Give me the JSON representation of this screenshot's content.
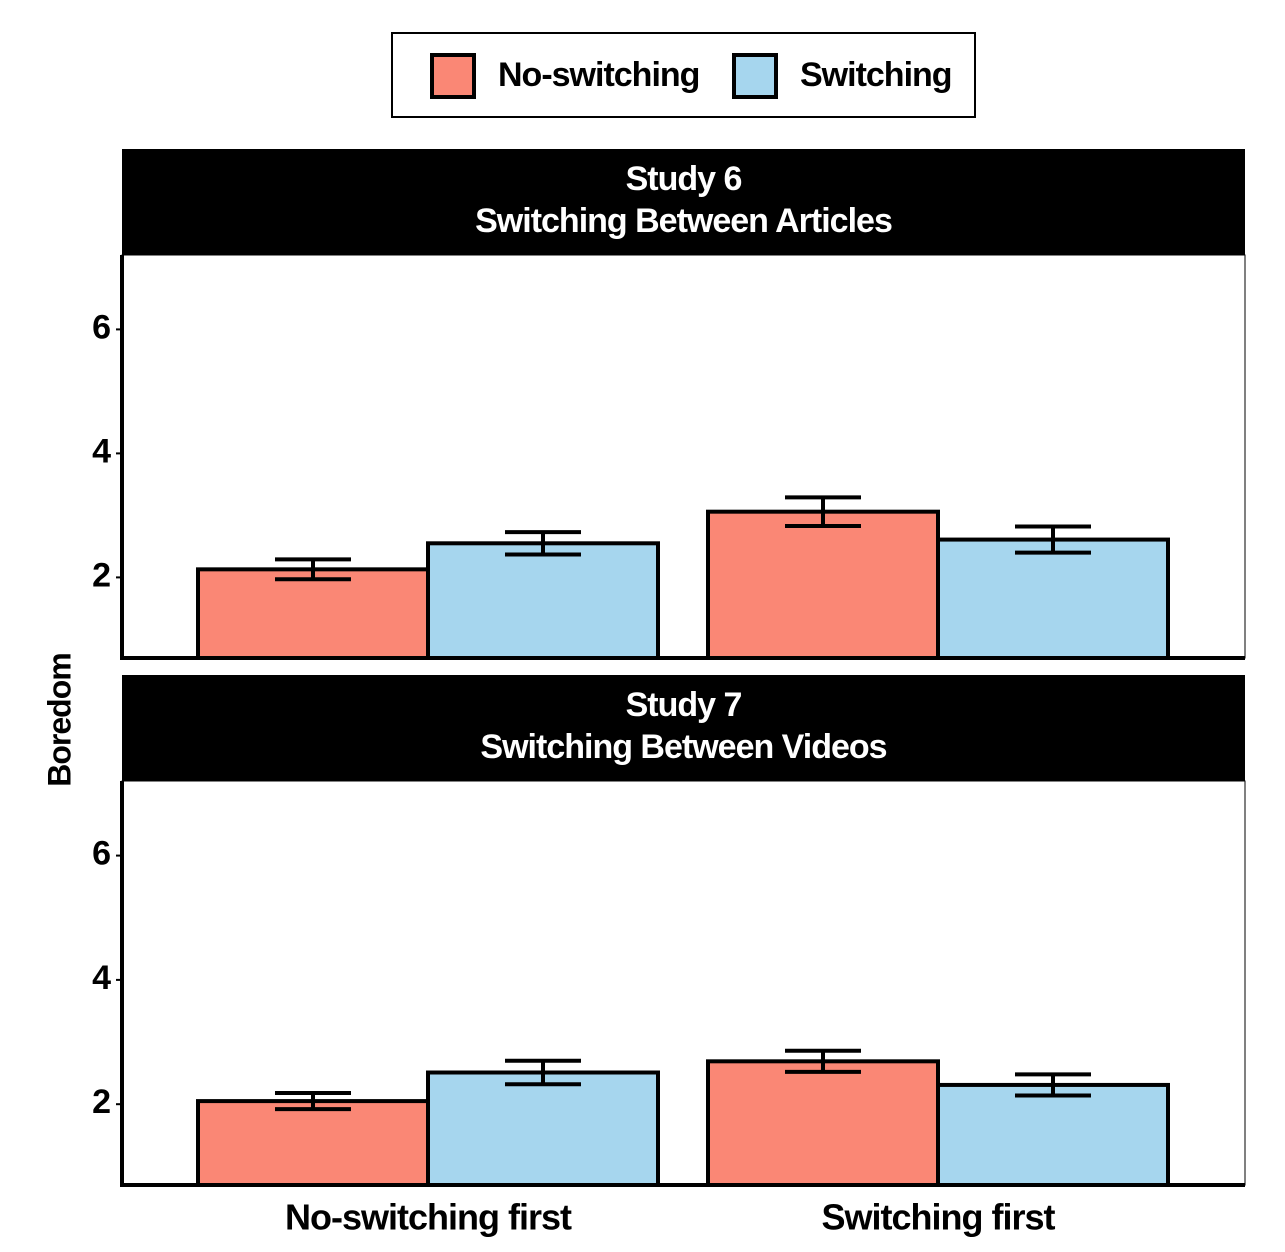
{
  "chart_data": [
    {
      "type": "bar",
      "title": "Study 6",
      "subtitle": "Switching Between Articles",
      "ylabel": "Boredom",
      "categories": [
        "No-switching first",
        "Switching first"
      ],
      "series": [
        {
          "name": "No-switching",
          "color": "#fa8775",
          "values": [
            2.13,
            3.06
          ],
          "errors": [
            0.16,
            0.23
          ]
        },
        {
          "name": "Switching",
          "color": "#a6d6ee",
          "values": [
            2.55,
            2.61
          ],
          "errors": [
            0.18,
            0.21
          ]
        }
      ],
      "ylim": [
        0.7,
        7.2
      ],
      "yticks": [
        2,
        4,
        6
      ]
    },
    {
      "type": "bar",
      "title": "Study 7",
      "subtitle": "Switching Between Videos",
      "categories": [
        "No-switching first",
        "Switching first"
      ],
      "series": [
        {
          "name": "No-switching",
          "color": "#fa8775",
          "values": [
            2.05,
            2.69
          ],
          "errors": [
            0.13,
            0.17
          ]
        },
        {
          "name": "Switching",
          "color": "#a6d6ee",
          "values": [
            2.51,
            2.31
          ],
          "errors": [
            0.19,
            0.17
          ]
        }
      ],
      "ylim": [
        0.7,
        7.2
      ],
      "yticks": [
        2,
        4,
        6
      ]
    }
  ]
}
